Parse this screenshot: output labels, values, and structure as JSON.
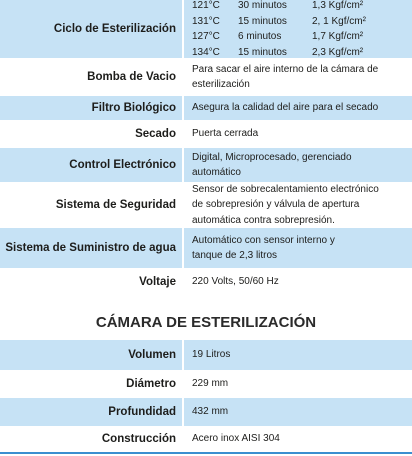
{
  "general": {
    "rows": [
      {
        "label": "Ciclo de Esterilización",
        "cycles": [
          [
            "121°C",
            "30 minutos",
            "1,3  Kgf/cm²"
          ],
          [
            "131°C",
            "15 minutos",
            "2, 1 Kgf/cm²"
          ],
          [
            "127°C",
            "6 minutos",
            "1,7  Kgf/cm²"
          ],
          [
            "134°C",
            "15 minutos",
            "2,3  Kgf/cm²"
          ]
        ]
      },
      {
        "label": "Bomba de Vacio",
        "lines": [
          "Para sacar el aire interno de la cámara de",
          "esterilización"
        ]
      },
      {
        "label": "Filtro Biológico",
        "lines": [
          "Asegura la calidad del aire para el secado"
        ]
      },
      {
        "label": "Secado",
        "lines": [
          "Puerta cerrada"
        ]
      },
      {
        "label": "Control Electrónico",
        "lines": [
          "Digital, Microprocesado, gerenciado",
          "automático"
        ]
      },
      {
        "label": "Sistema de Seguridad",
        "lines": [
          "Sensor de sobrecalentamiento electrónico",
          "de sobrepresión y válvula de apertura",
          "automática contra sobrepresión."
        ]
      },
      {
        "label": "Sistema de Suministro de agua",
        "lines": [
          "Automático con sensor interno y",
          "tanque de 2,3 litros"
        ]
      },
      {
        "label": "Voltaje",
        "lines": [
          "220 Volts, 50/60 Hz"
        ]
      }
    ]
  },
  "chamber": {
    "title": "CÁMARA DE ESTERILIZACIÓN",
    "rows": [
      {
        "label": "Volumen",
        "lines": [
          "19 Litros"
        ]
      },
      {
        "label": "Diámetro",
        "lines": [
          "229 mm"
        ]
      },
      {
        "label": "Profundidad",
        "lines": [
          "432 mm"
        ]
      },
      {
        "label": "Construcción",
        "lines": [
          "Acero inox AISI 304"
        ]
      }
    ]
  }
}
